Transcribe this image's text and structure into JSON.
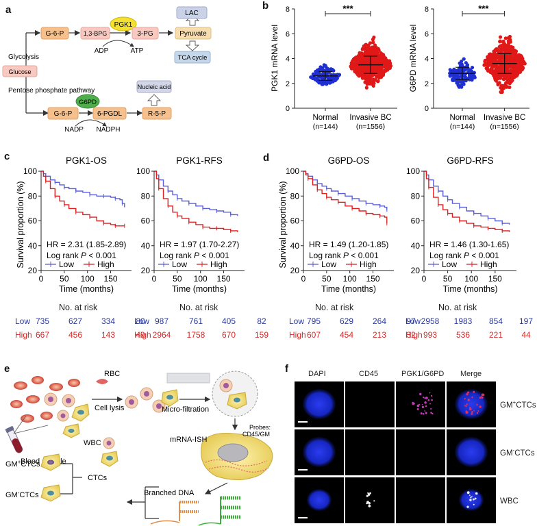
{
  "panel_labels": {
    "a": "a",
    "b": "b",
    "c": "c",
    "d": "d",
    "e": "e",
    "f": "f"
  },
  "panel_a": {
    "glucose": "Glucose",
    "glycolysis": "Glycolysis",
    "ppp": "Pentose phosphate pathway",
    "g6p_top": "G-6-P",
    "bpg": "1,3-BPG",
    "pgk1": "PGK1",
    "pg3": "3-PG",
    "pyruvate": "Pyruvate",
    "lac": "LAC",
    "tca": "TCA cycle",
    "adp": "ADP",
    "atp": "ATP",
    "g6p_bottom": "G-6-P",
    "g6pd": "G6PD",
    "pgdl": "6-PGDL",
    "r5p": "R-5-P",
    "nucleic": "Nucleic acid",
    "nadp": "NADP",
    "nadph": "NADPH"
  },
  "chart_data": [
    {
      "type": "scatter",
      "title": "PGK1 mRNA level",
      "ylabel": "PGK1 mRNA level",
      "ylim": [
        0,
        8
      ],
      "yticks": [
        "0",
        "2",
        "4",
        "6",
        "8"
      ],
      "categories": [
        "Normal",
        "Invasive BC"
      ],
      "category_n": [
        "(n=144)",
        "(n=1556)"
      ],
      "series": [
        {
          "name": "Normal",
          "mean": 2.6,
          "sd": 0.35,
          "min": 1.8,
          "max": 3.5,
          "n": 144,
          "color": "#1f2fd1"
        },
        {
          "name": "Invasive BC",
          "mean": 3.5,
          "sd": 0.7,
          "min": 1.6,
          "max": 6.1,
          "n": 1556,
          "color": "#e01818"
        }
      ],
      "significance": "***"
    },
    {
      "type": "scatter",
      "title": "G6PD mRNA level",
      "ylabel": "G6PD mRNA level",
      "ylim": [
        0,
        8
      ],
      "yticks": [
        "0",
        "2",
        "4",
        "6",
        "8"
      ],
      "categories": [
        "Normal",
        "Invasive BC"
      ],
      "category_n": [
        "(n=144)",
        "(n=1556)"
      ],
      "series": [
        {
          "name": "Normal",
          "mean": 2.8,
          "sd": 0.5,
          "min": 1.7,
          "max": 5.1,
          "n": 144,
          "color": "#1f2fd1"
        },
        {
          "name": "Invasive BC",
          "mean": 3.6,
          "sd": 0.8,
          "min": 1.3,
          "max": 6.3,
          "n": 1556,
          "color": "#e01818"
        }
      ],
      "significance": "***"
    },
    {
      "type": "line",
      "title": "PGK1-OS",
      "ylabel": "Survival proportion (%)",
      "xlabel": "Time (months)",
      "xlim": [
        0,
        200
      ],
      "ylim": [
        20,
        100
      ],
      "xticks": [
        "0",
        "50",
        "100",
        "150"
      ],
      "yticks": [
        "20",
        "40",
        "60",
        "80",
        "100"
      ],
      "hr_text": "HR = 2.31 (1.85-2.89)",
      "logrank_prefix": "Log rank ",
      "p_letter": "P",
      "p_suffix": " < 0.001",
      "legend": [
        "Low",
        "High"
      ],
      "series": [
        {
          "name": "Low",
          "color": "#5b5fd6",
          "x": [
            0,
            5,
            10,
            20,
            30,
            40,
            50,
            60,
            75,
            90,
            105,
            120,
            135,
            150,
            160,
            170,
            175,
            180
          ],
          "y": [
            100,
            98,
            96,
            93,
            91,
            89,
            87,
            86,
            84,
            83,
            81,
            80,
            80,
            79,
            78,
            77,
            74,
            71
          ]
        },
        {
          "name": "High",
          "color": "#e02020",
          "x": [
            0,
            5,
            10,
            20,
            30,
            40,
            50,
            60,
            75,
            90,
            105,
            120,
            135,
            150,
            160,
            170,
            180
          ],
          "y": [
            100,
            96,
            92,
            86,
            80,
            76,
            73,
            70,
            67,
            65,
            63,
            60,
            58,
            57,
            56,
            56,
            56
          ]
        }
      ]
    },
    {
      "type": "line",
      "title": "PGK1-RFS",
      "ylabel": "",
      "xlabel": "Time (months)",
      "xlim": [
        0,
        200
      ],
      "ylim": [
        20,
        100
      ],
      "xticks": [
        "0",
        "50",
        "100",
        "150"
      ],
      "yticks": [
        "20",
        "40",
        "60",
        "80",
        "100"
      ],
      "hr_text": "HR = 1.97 (1.70-2.27)",
      "logrank_prefix": "Log rank ",
      "p_letter": "P",
      "p_suffix": " < 0.001",
      "legend": [
        "Low",
        "High"
      ],
      "series": [
        {
          "name": "Low",
          "color": "#5b5fd6",
          "x": [
            0,
            5,
            10,
            20,
            30,
            40,
            50,
            60,
            75,
            90,
            105,
            120,
            135,
            150,
            165,
            180
          ],
          "y": [
            100,
            97,
            93,
            88,
            84,
            81,
            78,
            76,
            74,
            72,
            70,
            69,
            68,
            67,
            65,
            64
          ]
        },
        {
          "name": "High",
          "color": "#e02020",
          "x": [
            0,
            5,
            10,
            20,
            30,
            40,
            50,
            60,
            75,
            90,
            105,
            120,
            135,
            150,
            165,
            180
          ],
          "y": [
            100,
            94,
            86,
            78,
            72,
            67,
            64,
            62,
            59,
            57,
            55,
            54,
            54,
            53,
            52,
            51
          ]
        }
      ]
    },
    {
      "type": "line",
      "title": "G6PD-OS",
      "ylabel": "Survival proportion (%)",
      "xlabel": "Time (months)",
      "xlim": [
        0,
        200
      ],
      "ylim": [
        20,
        100
      ],
      "xticks": [
        "0",
        "50",
        "100",
        "150"
      ],
      "yticks": [
        "20",
        "40",
        "60",
        "80",
        "100"
      ],
      "hr_text": "HR = 1.49 (1.20-1.85)",
      "logrank_prefix": "Log rank ",
      "p_letter": "P",
      "p_suffix": " < 0.001",
      "legend": [
        "Low",
        "High"
      ],
      "series": [
        {
          "name": "Low",
          "color": "#5b5fd6",
          "x": [
            0,
            5,
            10,
            20,
            30,
            40,
            50,
            60,
            75,
            90,
            105,
            120,
            135,
            150,
            165,
            175,
            180
          ],
          "y": [
            100,
            98,
            96,
            93,
            90,
            88,
            86,
            84,
            82,
            80,
            78,
            76,
            74,
            73,
            72,
            71,
            69
          ]
        },
        {
          "name": "High",
          "color": "#e02020",
          "x": [
            0,
            5,
            10,
            20,
            30,
            40,
            50,
            60,
            75,
            90,
            105,
            120,
            135,
            150,
            165,
            175,
            180
          ],
          "y": [
            100,
            97,
            94,
            89,
            85,
            82,
            79,
            77,
            75,
            72,
            70,
            68,
            66,
            65,
            64,
            63,
            58
          ]
        }
      ]
    },
    {
      "type": "line",
      "title": "G6PD-RFS",
      "ylabel": "",
      "xlabel": "Time (months)",
      "xlim": [
        0,
        200
      ],
      "ylim": [
        20,
        100
      ],
      "xticks": [
        "0",
        "50",
        "100",
        "150"
      ],
      "yticks": [
        "20",
        "40",
        "60",
        "80",
        "100"
      ],
      "hr_text": "HR = 1.46 (1.30-1.65)",
      "logrank_prefix": "Log rank ",
      "p_letter": "P",
      "p_suffix": " < 0.001",
      "legend": [
        "Low",
        "High"
      ],
      "series": [
        {
          "name": "Low",
          "color": "#5b5fd6",
          "x": [
            0,
            5,
            10,
            20,
            30,
            40,
            50,
            60,
            75,
            90,
            105,
            120,
            135,
            150,
            165,
            180
          ],
          "y": [
            100,
            97,
            93,
            88,
            84,
            80,
            77,
            74,
            71,
            68,
            66,
            64,
            62,
            60,
            58,
            57
          ]
        },
        {
          "name": "High",
          "color": "#e02020",
          "x": [
            0,
            5,
            10,
            20,
            30,
            40,
            50,
            60,
            75,
            90,
            105,
            120,
            135,
            150,
            165,
            180
          ],
          "y": [
            100,
            94,
            87,
            79,
            73,
            69,
            66,
            63,
            60,
            58,
            56,
            55,
            54,
            53,
            52,
            51
          ]
        }
      ]
    }
  ],
  "risk_tables": [
    {
      "title": "No. at risk",
      "low_label": "Low",
      "high_label": "High",
      "low": [
        "735",
        "627",
        "334",
        "80"
      ],
      "high": [
        "667",
        "456",
        "143",
        "49"
      ]
    },
    {
      "title": "No. at risk",
      "low_label": "Low",
      "high_label": "High",
      "low": [
        "987",
        "761",
        "405",
        "82"
      ],
      "high": [
        "2964",
        "1758",
        "670",
        "159"
      ]
    },
    {
      "title": "No. at risk",
      "low_label": "Low",
      "high_label": "High",
      "low": [
        "795",
        "629",
        "264",
        "97"
      ],
      "high": [
        "607",
        "454",
        "213",
        "32"
      ]
    },
    {
      "title": "No. at risk",
      "low_label": "Low",
      "high_label": "High",
      "low": [
        "2958",
        "1983",
        "854",
        "197"
      ],
      "high": [
        "993",
        "536",
        "221",
        "44"
      ]
    }
  ],
  "panel_e": {
    "rbc": "RBC",
    "cell_lysis": "Cell lysis",
    "micro_filtration": "Micro-filtration",
    "blood_sample": "Blood sample",
    "probes_line1": "Probes:",
    "probes_line2": "CD45/GM",
    "mrna_ish": "mRNA-ISH",
    "wbc": "WBC",
    "branched_dna": "Branched DNA",
    "ctcs": "CTCs",
    "gm_plus_prefix": "GM",
    "gm_plus_sup": "+",
    "gm_minus_prefix": "GM",
    "gm_minus_sup": "-",
    "ctc_suffix": "CTCs"
  },
  "panel_f": {
    "cols": [
      "DAPI",
      "CD45",
      "PGK1/G6PD",
      "Merge"
    ],
    "rows": [
      {
        "prefix": "GM",
        "sup": "+",
        "suffix": "CTCs"
      },
      {
        "prefix": "GM",
        "sup": "-",
        "suffix": "CTCs"
      },
      {
        "prefix": "WBC",
        "sup": "",
        "suffix": ""
      }
    ]
  },
  "colors": {
    "low": "#5b5fd6",
    "high": "#e02020",
    "normal_dots": "#1f2fd1",
    "bc_dots": "#e01818",
    "micro_bg": "#000000",
    "nucleus": "#1a2bd6"
  }
}
